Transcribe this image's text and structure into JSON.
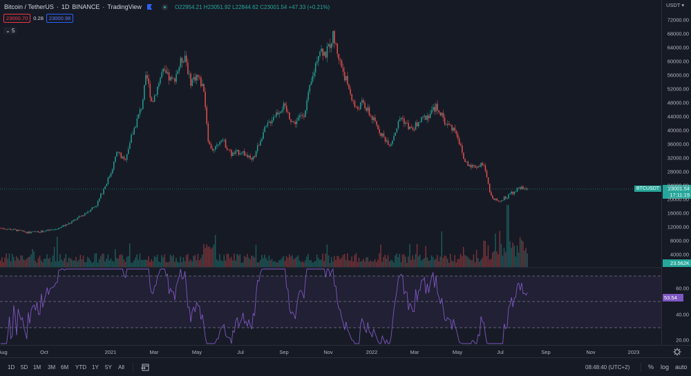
{
  "header": {
    "title": "Bitcoin / TetherUS",
    "interval": "1D",
    "exchange": "BINANCE",
    "source": "TradingView",
    "open_label": "O",
    "open": "22954.21",
    "high_label": "H",
    "high": "23051.92",
    "low_label": "L",
    "low": "22844.62",
    "close_label": "C",
    "close": "23001.54",
    "change": "+47.33 (+0.21%)",
    "bid": "23000.70",
    "spread": "0.28",
    "ask": "23000.98",
    "indicators_toggle": "5"
  },
  "price_axis": {
    "currency": "USDT ▾",
    "ticks": [
      "72000.00",
      "68000.00",
      "64000.00",
      "60000.00",
      "56000.00",
      "52000.00",
      "48000.00",
      "44000.00",
      "40000.00",
      "36000.00",
      "32000.00",
      "28000.00",
      "24000.00",
      "20000.00",
      "16000.00",
      "12000.00",
      "8000.00",
      "4000.00"
    ],
    "last_price": "23001.54",
    "countdown": "17:11:19",
    "symbol_tag": "BTCUSDT",
    "volume_value": "23.562K"
  },
  "rsi_axis": {
    "ticks": [
      "60.00",
      "40.00",
      "20.00"
    ],
    "value": "53.54"
  },
  "time_axis": {
    "labels": [
      "Aug",
      "Oct",
      "2021",
      "Mar",
      "May",
      "Jul",
      "Sep",
      "Nov",
      "2022",
      "Mar",
      "May",
      "Jul",
      "Sep",
      "Nov",
      "2023"
    ]
  },
  "bottom_bar": {
    "ranges": [
      "1D",
      "5D",
      "1M",
      "3M",
      "6M",
      "YTD",
      "1Y",
      "5Y",
      "All"
    ],
    "clock": "08:48:40 (UTC+2)",
    "percent": "%",
    "log": "log",
    "auto": "auto"
  },
  "colors": {
    "background": "#161a25",
    "up": "#26a69a",
    "down": "#ef5350",
    "rsi_line": "#7e57c2",
    "rsi_band": "#2a2540",
    "grid": "#1f2330"
  },
  "chart_data": [
    {
      "type": "candlestick",
      "title": "Bitcoin / TetherUS · 1D · BINANCE",
      "xlabel": "",
      "ylabel": "USDT",
      "ylim": [
        0,
        72000
      ],
      "x": [
        "2020-08",
        "2020-09",
        "2020-10",
        "2020-11",
        "2020-12",
        "2021-01",
        "2021-02",
        "2021-03",
        "2021-04",
        "2021-05",
        "2021-06",
        "2021-07",
        "2021-08",
        "2021-09",
        "2021-10",
        "2021-11",
        "2021-12",
        "2022-01",
        "2022-02",
        "2022-03",
        "2022-04",
        "2022-05",
        "2022-06",
        "2022-07",
        "2022-08"
      ],
      "close_approx": [
        11700,
        10800,
        13800,
        19700,
        29000,
        33100,
        45200,
        58900,
        57700,
        37300,
        35000,
        41500,
        47100,
        43800,
        61300,
        57000,
        46200,
        38500,
        43200,
        45500,
        37700,
        31800,
        19900,
        23300,
        23001.54
      ],
      "path_points": [
        [
          0,
          11700
        ],
        [
          20,
          11200
        ],
        [
          40,
          10400
        ],
        [
          60,
          10700
        ],
        [
          80,
          11300
        ],
        [
          100,
          13000
        ],
        [
          120,
          15500
        ],
        [
          140,
          18500
        ],
        [
          150,
          23000
        ],
        [
          160,
          27500
        ],
        [
          170,
          34000
        ],
        [
          180,
          31000
        ],
        [
          190,
          38000
        ],
        [
          205,
          47000
        ],
        [
          212,
          56000
        ],
        [
          220,
          48000
        ],
        [
          235,
          57000
        ],
        [
          250,
          54000
        ],
        [
          262,
          60000
        ],
        [
          268,
          62000
        ],
        [
          275,
          54000
        ],
        [
          285,
          56000
        ],
        [
          295,
          52000
        ],
        [
          302,
          36000
        ],
        [
          310,
          34000
        ],
        [
          320,
          38000
        ],
        [
          335,
          33000
        ],
        [
          350,
          34000
        ],
        [
          365,
          31000
        ],
        [
          380,
          39000
        ],
        [
          395,
          44000
        ],
        [
          410,
          47000
        ],
        [
          425,
          42000
        ],
        [
          440,
          45000
        ],
        [
          452,
          55000
        ],
        [
          462,
          64000
        ],
        [
          472,
          62000
        ],
        [
          482,
          67500
        ],
        [
          492,
          60000
        ],
        [
          505,
          52000
        ],
        [
          515,
          46000
        ],
        [
          525,
          48000
        ],
        [
          540,
          43000
        ],
        [
          555,
          38000
        ],
        [
          565,
          36000
        ],
        [
          580,
          44000
        ],
        [
          595,
          40000
        ],
        [
          610,
          43000
        ],
        [
          620,
          44500
        ],
        [
          632,
          47000
        ],
        [
          645,
          42000
        ],
        [
          660,
          40000
        ],
        [
          672,
          31000
        ],
        [
          685,
          29500
        ],
        [
          700,
          30000
        ],
        [
          710,
          21000
        ],
        [
          722,
          19500
        ],
        [
          735,
          21000
        ],
        [
          745,
          22500
        ],
        [
          755,
          23500
        ],
        [
          765,
          23001
        ]
      ]
    },
    {
      "type": "bar",
      "title": "Volume",
      "ylabel": "Volume",
      "last_value": "23.562K"
    },
    {
      "type": "line",
      "title": "RSI",
      "ylim": [
        15,
        85
      ],
      "bands": [
        30,
        50,
        70
      ],
      "last_value": 53.54
    }
  ]
}
